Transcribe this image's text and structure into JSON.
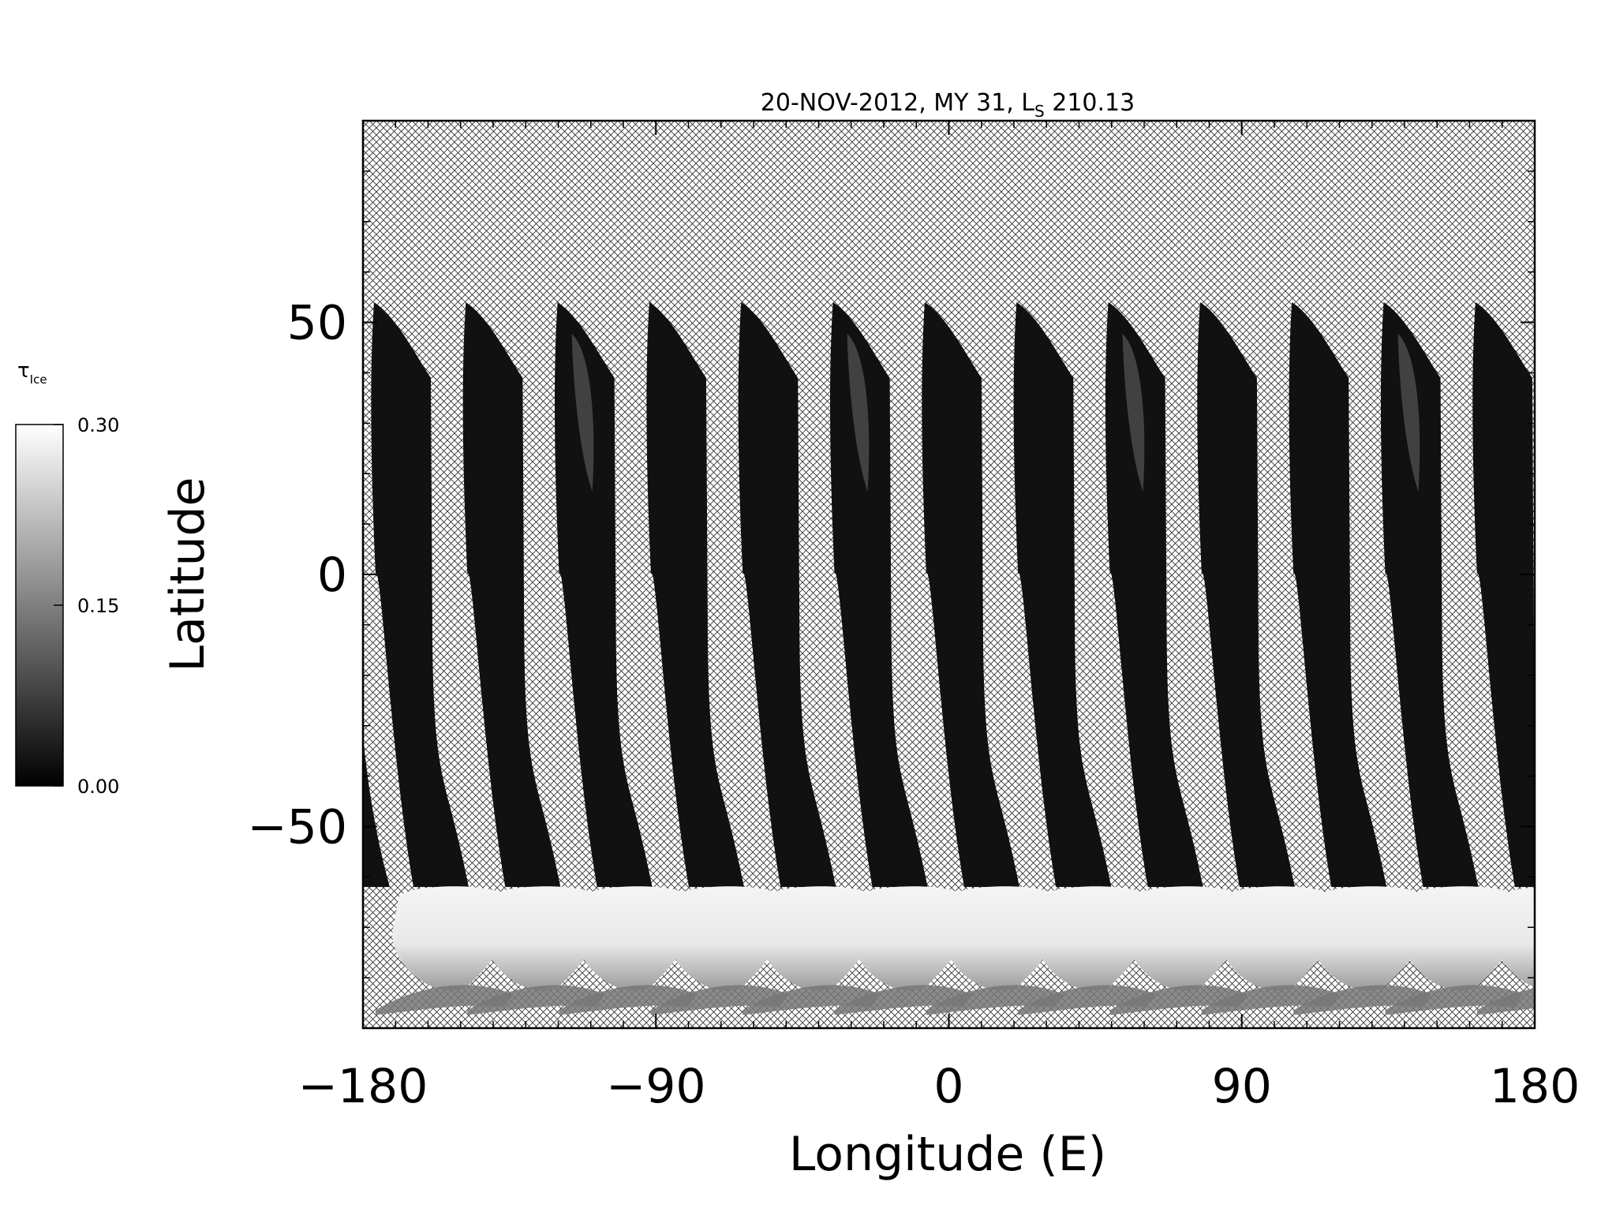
{
  "chart_data": {
    "type": "heatmap",
    "title_parts": {
      "prefix": "20-NOV-2012, MY 31,  L",
      "subscript": "S",
      "suffix": " 210.13"
    },
    "xlabel": "Longitude (E)",
    "ylabel": "Latitude",
    "xlim": [
      -180,
      180
    ],
    "ylim": [
      -90,
      90
    ],
    "x_ticks": [
      {
        "value": -180,
        "label": "−180"
      },
      {
        "value": -90,
        "label": "−90"
      },
      {
        "value": 0,
        "label": "0"
      },
      {
        "value": 90,
        "label": "90"
      },
      {
        "value": 180,
        "label": "180"
      }
    ],
    "y_ticks": [
      {
        "value": -50,
        "label": "−50"
      },
      {
        "value": 0,
        "label": "0"
      },
      {
        "value": 50,
        "label": "50"
      }
    ],
    "no_data_pattern": "crosshatch",
    "colorbar": {
      "label_symbol": "τ",
      "label_subscript": "Ice",
      "min": 0.0,
      "max": 0.3,
      "ticks": [
        {
          "value": 0.0,
          "label": "0.00"
        },
        {
          "value": 0.15,
          "label": "0.15"
        },
        {
          "value": 0.3,
          "label": "0.30"
        }
      ],
      "colormap": "grayscale"
    },
    "swaths": {
      "count": 13,
      "lat_top": 54,
      "lat_bottom": -88,
      "cap_lat": -62,
      "start_lon": -180,
      "spacing_lon": 28.2,
      "swath_value": 0.02,
      "cap_value": 0.29
    }
  }
}
